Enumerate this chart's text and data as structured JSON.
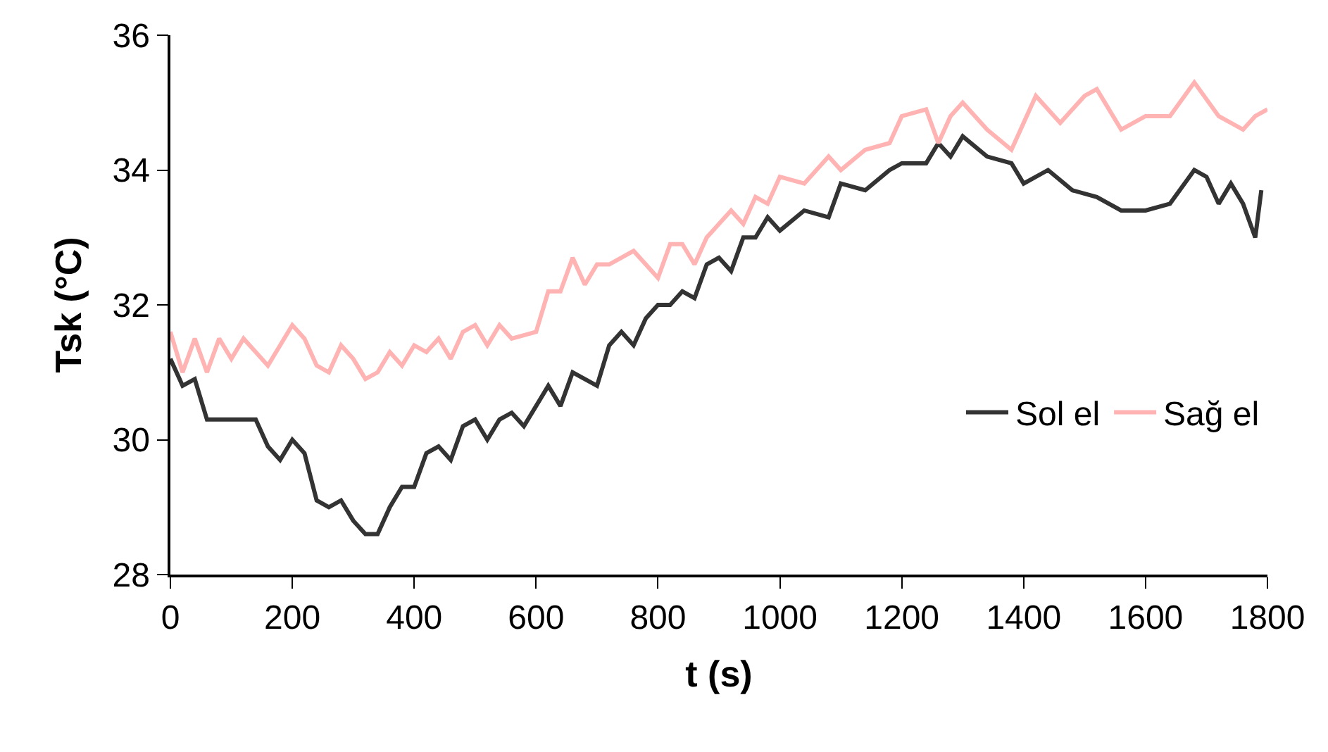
{
  "chart_data": {
    "type": "line",
    "xlabel": "t (s)",
    "ylabel": "Tsk (°C)",
    "xlim": [
      0,
      1800
    ],
    "xticks": [
      0,
      200,
      400,
      600,
      800,
      1000,
      1200,
      1400,
      1600,
      1800
    ],
    "ylim": [
      28,
      36
    ],
    "yticks": [
      28,
      30,
      32,
      34,
      36
    ],
    "grid": false,
    "legend": "bottom right",
    "marker": "none",
    "line_style": "solid",
    "series": [
      {
        "name": "Sol el",
        "color": "#333333",
        "x": [
          0,
          20,
          40,
          60,
          100,
          140,
          160,
          180,
          200,
          220,
          240,
          260,
          280,
          300,
          320,
          340,
          360,
          380,
          400,
          420,
          440,
          460,
          480,
          500,
          520,
          540,
          560,
          580,
          600,
          620,
          640,
          660,
          680,
          700,
          720,
          740,
          760,
          780,
          800,
          820,
          840,
          860,
          880,
          900,
          920,
          940,
          960,
          980,
          1000,
          1040,
          1080,
          1100,
          1140,
          1180,
          1200,
          1240,
          1260,
          1280,
          1300,
          1340,
          1380,
          1400,
          1440,
          1480,
          1520,
          1560,
          1600,
          1640,
          1680,
          1700,
          1720,
          1740,
          1760,
          1780,
          1790
        ],
        "values": [
          31.2,
          30.8,
          30.9,
          30.3,
          30.3,
          30.3,
          29.9,
          29.7,
          30.0,
          29.8,
          29.1,
          29.0,
          29.1,
          28.8,
          28.6,
          28.6,
          29.0,
          29.3,
          29.3,
          29.8,
          29.9,
          29.7,
          30.2,
          30.3,
          30.0,
          30.3,
          30.4,
          30.2,
          30.5,
          30.8,
          30.5,
          31.0,
          30.9,
          30.8,
          31.4,
          31.6,
          31.4,
          31.8,
          32.0,
          32.0,
          32.2,
          32.1,
          32.6,
          32.7,
          32.5,
          33.0,
          33.0,
          33.3,
          33.1,
          33.4,
          33.3,
          33.8,
          33.7,
          34.0,
          34.1,
          34.1,
          34.4,
          34.2,
          34.5,
          34.2,
          34.1,
          33.8,
          34.0,
          33.7,
          33.6,
          33.4,
          33.4,
          33.5,
          34.0,
          33.9,
          33.5,
          33.8,
          33.5,
          33.0,
          33.7
        ]
      },
      {
        "name": "Sağ el",
        "color": "#ffb3b3",
        "x": [
          0,
          20,
          40,
          60,
          80,
          100,
          120,
          140,
          160,
          180,
          200,
          220,
          240,
          260,
          280,
          300,
          320,
          340,
          360,
          380,
          400,
          420,
          440,
          460,
          480,
          500,
          520,
          540,
          560,
          600,
          620,
          640,
          660,
          680,
          700,
          720,
          760,
          780,
          800,
          820,
          840,
          860,
          880,
          900,
          920,
          940,
          960,
          980,
          1000,
          1040,
          1080,
          1100,
          1140,
          1180,
          1200,
          1240,
          1260,
          1280,
          1300,
          1340,
          1380,
          1420,
          1460,
          1500,
          1520,
          1560,
          1600,
          1640,
          1680,
          1720,
          1760,
          1780,
          1800
        ],
        "values": [
          31.6,
          31.0,
          31.5,
          31.0,
          31.5,
          31.2,
          31.5,
          31.3,
          31.1,
          31.4,
          31.7,
          31.5,
          31.1,
          31.0,
          31.4,
          31.2,
          30.9,
          31.0,
          31.3,
          31.1,
          31.4,
          31.3,
          31.5,
          31.2,
          31.6,
          31.7,
          31.4,
          31.7,
          31.5,
          31.6,
          32.2,
          32.2,
          32.7,
          32.3,
          32.6,
          32.6,
          32.8,
          32.6,
          32.4,
          32.9,
          32.9,
          32.6,
          33.0,
          33.2,
          33.4,
          33.2,
          33.6,
          33.5,
          33.9,
          33.8,
          34.2,
          34.0,
          34.3,
          34.4,
          34.8,
          34.9,
          34.4,
          34.8,
          35.0,
          34.6,
          34.3,
          35.1,
          34.7,
          35.1,
          35.2,
          34.6,
          34.8,
          34.8,
          35.3,
          34.8,
          34.6,
          34.8,
          34.9
        ]
      }
    ]
  }
}
